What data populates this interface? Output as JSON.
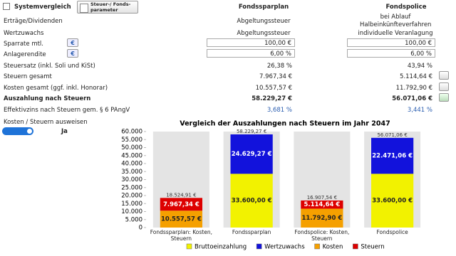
{
  "header": {
    "checkbox_label": "Systemvergleich",
    "button_label": "Steuer-/ Fonds-parameter",
    "col1": "Fondssparplan",
    "col2": "Fondspolice"
  },
  "rows": [
    {
      "label": "Erträge/Dividenden",
      "col1": "Abgeltungssteuer",
      "col2": "bei Ablauf Halbeinkünfteverfahren"
    },
    {
      "label": "Wertzuwachs",
      "col1": "Abgeltungssteuer",
      "col2": "individuelle Veranlagung"
    },
    {
      "label": "Sparrate mtl.",
      "col1": "100,00 €",
      "col2": "100,00 €"
    },
    {
      "label": "Anlagerendite",
      "col1": "6,00 %",
      "col2": "6,00 %"
    },
    {
      "label": "Steuersatz (inkl. Soli und KiSt)",
      "col1": "26,38 %",
      "col2": "43,94 %"
    },
    {
      "label": "Steuern gesamt",
      "col1": "7.967,34 €",
      "col2": "5.114,64 €"
    },
    {
      "label": "Kosten gesamt (ggf. inkl. Honorar)",
      "col1": "10.557,57 €",
      "col2": "11.792,90 €"
    },
    {
      "label": "Auszahlung nach Steuern",
      "col1": "58.229,27 €",
      "col2": "56.071,06 €"
    },
    {
      "label": "Effektivzins nach Steuern gem. § 6 PAngV",
      "col1": "3,681 %",
      "col2": "3,441 %"
    }
  ],
  "toggle": {
    "label": "Kosten / Steuern ausweisen",
    "value": "Ja"
  },
  "chart_data": {
    "type": "stacked_bar",
    "title": "Vergleich der Auszahlungen nach Steuern im Jahr 2047",
    "categories": [
      "Fondssparplan: Kosten, Steuern",
      "Fondssparplan",
      "Fondspolice: Kosten, Steuern",
      "Fondspolice"
    ],
    "series": [
      {
        "name": "Bruttoeinzahlung",
        "color": "#f2f200",
        "values": [
          null,
          33600,
          null,
          33600
        ],
        "value_labels": [
          null,
          "33.600,00 €",
          null,
          "33.600,00 €"
        ]
      },
      {
        "name": "Wertzuwachs",
        "color": "#1212dc",
        "values": [
          null,
          24629.27,
          null,
          22471.06
        ],
        "value_labels": [
          null,
          "24.629,27 €",
          null,
          "22.471,06 €"
        ]
      },
      {
        "name": "Kosten",
        "color": "#f5a000",
        "values": [
          10557.57,
          null,
          11792.9,
          null
        ],
        "value_labels": [
          "10.557,57 €",
          null,
          "11.792,90 €",
          null
        ]
      },
      {
        "name": "Steuern",
        "color": "#dd0000",
        "values": [
          7967.34,
          null,
          5114.64,
          null
        ],
        "value_labels": [
          "7.967,34 €",
          null,
          "5.114,64 €",
          null
        ]
      }
    ],
    "totals": [
      18524.91,
      58229.27,
      16907.54,
      56071.06
    ],
    "total_labels": [
      "18.524,91 €",
      "58.229,27 €",
      "16.907,54 €",
      "56.071,06 €"
    ],
    "ylim": [
      0,
      60000
    ],
    "yticks": [
      0,
      {
        "value": 5000,
        "label": "5.000"
      },
      {
        "value": 10000,
        "label": "10.000"
      },
      {
        "value": 15000,
        "label": "15.000"
      },
      {
        "value": 20000,
        "label": "20.000"
      },
      {
        "value": 25000,
        "label": "25.000"
      },
      {
        "value": 30000,
        "label": "30.000"
      },
      {
        "value": 35000,
        "label": "35.000"
      },
      {
        "value": 40000,
        "label": "40.000"
      },
      {
        "value": 45000,
        "label": "45.000"
      },
      {
        "value": 50000,
        "label": "50.000"
      },
      {
        "value": 55000,
        "label": "55.000"
      },
      {
        "value": 60000,
        "label": "60.000"
      }
    ]
  }
}
